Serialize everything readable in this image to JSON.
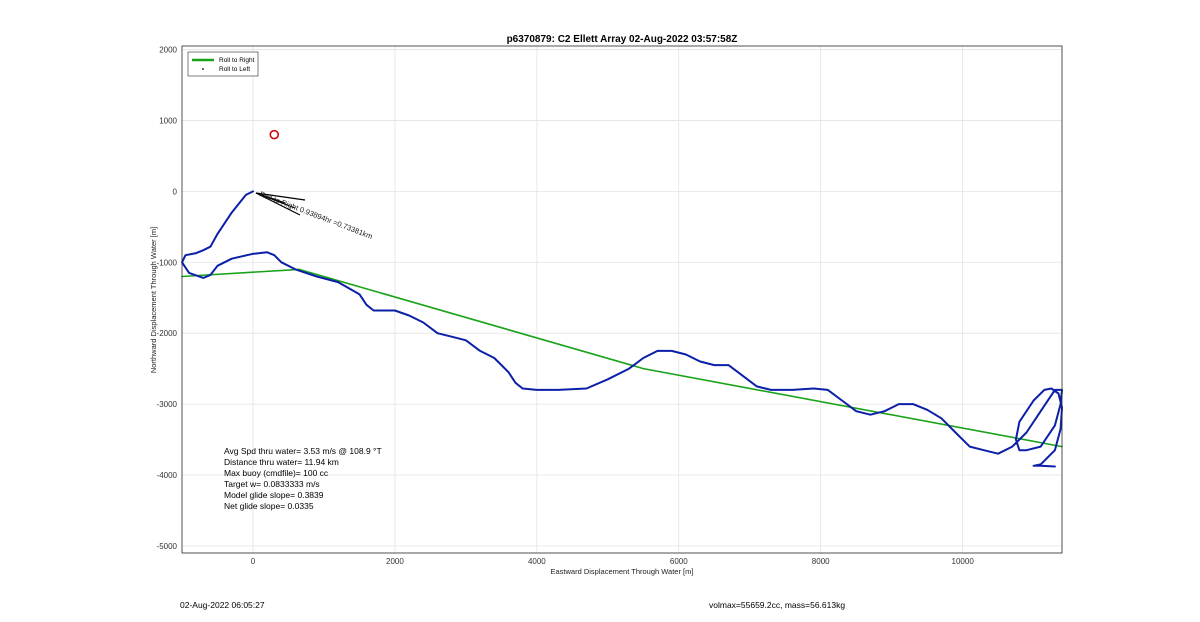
{
  "chart_data": {
    "type": "line",
    "title": "p6370879: C2 Ellett Array 02-Aug-2022 03:57:58Z",
    "xlabel": "Eastward Displacement Through Water [m]",
    "ylabel": "Northward Displacement Through Water [m]",
    "xlim": [
      -1000,
      11400
    ],
    "ylim": [
      -5100,
      2050
    ],
    "xticks": [
      0,
      2000,
      4000,
      6000,
      8000,
      10000
    ],
    "yticks": [
      2000,
      1000,
      0,
      -1000,
      -2000,
      -3000,
      -4000,
      -5000
    ],
    "grid": true,
    "legend": {
      "placement": "top-left",
      "entries": [
        {
          "label": "Roll to Right",
          "color": "#1aa31a",
          "style": "line"
        },
        {
          "label": "Roll to Left",
          "color": "#000000",
          "style": "point"
        }
      ]
    },
    "series": [
      {
        "name": "Roll to Right",
        "color": "#1aa31a",
        "x": [
          -1000,
          650,
          5500,
          11400
        ],
        "y": [
          -1200,
          -1100,
          -2500,
          -3600
        ]
      },
      {
        "color": "#0b1fa8",
        "x": [
          0,
          -100,
          -300,
          -500,
          -600,
          -700,
          -800,
          -950,
          -1000,
          -900,
          -700,
          -600,
          -500,
          -300,
          0,
          200,
          300,
          400,
          600,
          900,
          1200,
          1500,
          1600,
          1700,
          1800,
          2000,
          2200,
          2400,
          2600,
          2800,
          3000,
          3200,
          3400,
          3600,
          3700,
          3800,
          4000,
          4300,
          4700,
          5000,
          5300,
          5500,
          5700,
          5900,
          6100,
          6300,
          6500,
          6700,
          6900,
          7100,
          7300,
          7600,
          7900,
          8100,
          8300,
          8500,
          8700,
          8900,
          9100,
          9300,
          9500,
          9700,
          9900,
          10100,
          10300,
          10500,
          10700,
          10900,
          11100,
          11300,
          11400,
          11380,
          11300,
          11100,
          10900,
          10800,
          10750,
          10800,
          11000,
          11150,
          11250,
          11350,
          11400,
          11380,
          11300,
          11200,
          11100,
          11000,
          11100,
          11300
        ],
        "y": [
          0,
          -50,
          -300,
          -600,
          -780,
          -830,
          -870,
          -900,
          -1000,
          -1150,
          -1220,
          -1180,
          -1050,
          -950,
          -880,
          -860,
          -900,
          -1000,
          -1100,
          -1200,
          -1280,
          -1450,
          -1600,
          -1680,
          -1680,
          -1680,
          -1750,
          -1850,
          -2000,
          -2050,
          -2100,
          -2250,
          -2350,
          -2550,
          -2700,
          -2780,
          -2800,
          -2800,
          -2780,
          -2650,
          -2500,
          -2350,
          -2250,
          -2250,
          -2300,
          -2400,
          -2450,
          -2450,
          -2600,
          -2750,
          -2800,
          -2800,
          -2780,
          -2800,
          -2950,
          -3100,
          -3150,
          -3100,
          -3000,
          -3000,
          -3080,
          -3200,
          -3400,
          -3600,
          -3650,
          -3700,
          -3600,
          -3400,
          -3100,
          -2800,
          -2800,
          -3000,
          -3300,
          -3600,
          -3650,
          -3650,
          -3500,
          -3250,
          -2950,
          -2800,
          -2780,
          -2850,
          -3050,
          -3350,
          -3650,
          -3750,
          -3850,
          -3870,
          -3870,
          -3880
        ]
      }
    ],
    "annotations": [
      {
        "text": "Roll to Right 0.93894hr =0.73381km",
        "x": 50,
        "y": -20,
        "color": "#000000"
      }
    ],
    "marker": {
      "x": 300,
      "y": 800,
      "color": "#cc0000",
      "shape": "circle"
    },
    "stats": [
      "Avg Spd thru water=  3.53 m/s @ 108.9 °T",
      "Distance thru water= 11.94 km",
      "Max buoy (cmdfile)= 100 cc",
      "Target w= 0.0833333 m/s",
      "Model glide slope= 0.3839",
      "Net glide slope= 0.0335"
    ]
  },
  "footer": {
    "left": "02-Aug-2022 06:05:27",
    "right": "volmax=55659.2cc, mass=56.613kg"
  }
}
